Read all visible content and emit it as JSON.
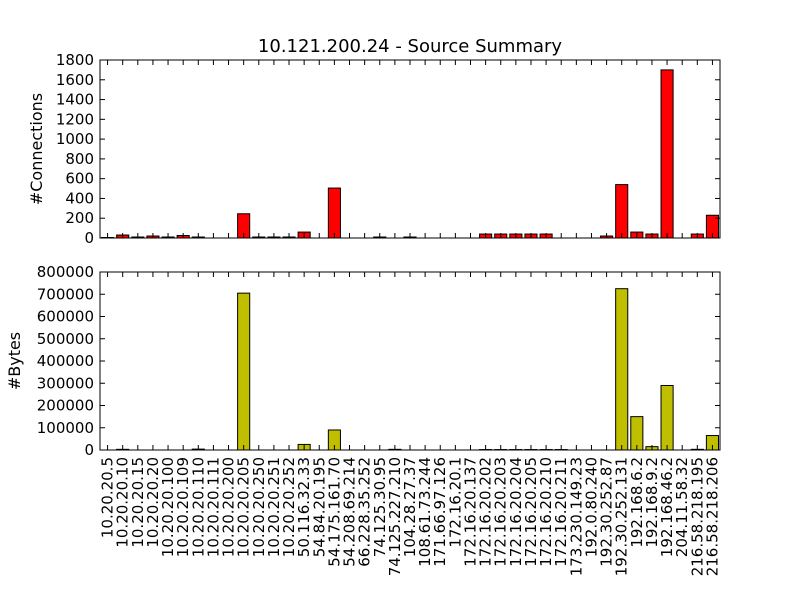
{
  "chart_data": [
    {
      "type": "bar",
      "title": "10.121.200.24 - Source Summary",
      "ylabel": "#Connections",
      "xlabel": "",
      "ylim": [
        0,
        1800
      ],
      "yticks": [
        0,
        200,
        400,
        600,
        800,
        1000,
        1200,
        1400,
        1600,
        1800
      ],
      "color": "#ff0000",
      "categories": [
        "10.20.20.5",
        "10.20.20.10",
        "10.20.20.15",
        "10.20.20.20",
        "10.20.20.100",
        "10.20.20.109",
        "10.20.20.110",
        "10.20.20.111",
        "10.20.20.200",
        "10.20.20.205",
        "10.20.20.250",
        "10.20.20.251",
        "10.20.20.252",
        "50.116.32.33",
        "54.84.20.195",
        "54.175.161.70",
        "54.208.69.214",
        "66.228.35.252",
        "74.125.30.95",
        "74.125.227.210",
        "104.28.27.37",
        "108.61.73.244",
        "171.66.97.126",
        "172.16.20.1",
        "172.16.20.137",
        "172.16.20.202",
        "172.16.20.203",
        "172.16.20.204",
        "172.16.20.205",
        "172.16.20.210",
        "172.16.20.211",
        "173.230.149.23",
        "192.0.80.240",
        "192.30.252.87",
        "192.30.252.131",
        "192.168.6.2",
        "192.168.9.2",
        "192.168.46.2",
        "204.11.58.32",
        "216.58.218.195",
        "216.58.218.206"
      ],
      "values": [
        5,
        30,
        10,
        20,
        10,
        25,
        10,
        0,
        0,
        245,
        10,
        10,
        10,
        60,
        0,
        505,
        0,
        0,
        10,
        0,
        10,
        0,
        0,
        0,
        0,
        40,
        40,
        40,
        40,
        40,
        0,
        0,
        0,
        20,
        540,
        60,
        40,
        1700,
        0,
        40,
        230
      ]
    },
    {
      "type": "bar",
      "title": "",
      "ylabel": "#Bytes",
      "xlabel": "",
      "ylim": [
        0,
        800000
      ],
      "yticks": [
        0,
        100000,
        200000,
        300000,
        400000,
        500000,
        600000,
        700000,
        800000
      ],
      "color": "#bfbf00",
      "categories": [
        "10.20.20.5",
        "10.20.20.10",
        "10.20.20.15",
        "10.20.20.20",
        "10.20.20.100",
        "10.20.20.109",
        "10.20.20.110",
        "10.20.20.111",
        "10.20.20.200",
        "10.20.20.205",
        "10.20.20.250",
        "10.20.20.251",
        "10.20.20.252",
        "50.116.32.33",
        "54.84.20.195",
        "54.175.161.70",
        "54.208.69.214",
        "66.228.35.252",
        "74.125.30.95",
        "74.125.227.210",
        "104.28.27.37",
        "108.61.73.244",
        "171.66.97.126",
        "172.16.20.1",
        "172.16.20.137",
        "172.16.20.202",
        "172.16.20.203",
        "172.16.20.204",
        "172.16.20.205",
        "172.16.20.210",
        "172.16.20.211",
        "173.230.149.23",
        "192.0.80.240",
        "192.30.252.87",
        "192.30.252.131",
        "192.168.6.2",
        "192.168.9.2",
        "192.168.46.2",
        "204.11.58.32",
        "216.58.218.195",
        "216.58.218.206"
      ],
      "values": [
        0,
        3000,
        0,
        0,
        0,
        0,
        4000,
        0,
        0,
        705000,
        0,
        0,
        0,
        25000,
        0,
        90000,
        0,
        0,
        0,
        3000,
        0,
        0,
        0,
        0,
        0,
        2000,
        2000,
        2000,
        2000,
        2000,
        2000,
        0,
        0,
        0,
        725000,
        150000,
        15000,
        290000,
        0,
        3000,
        65000
      ]
    }
  ]
}
